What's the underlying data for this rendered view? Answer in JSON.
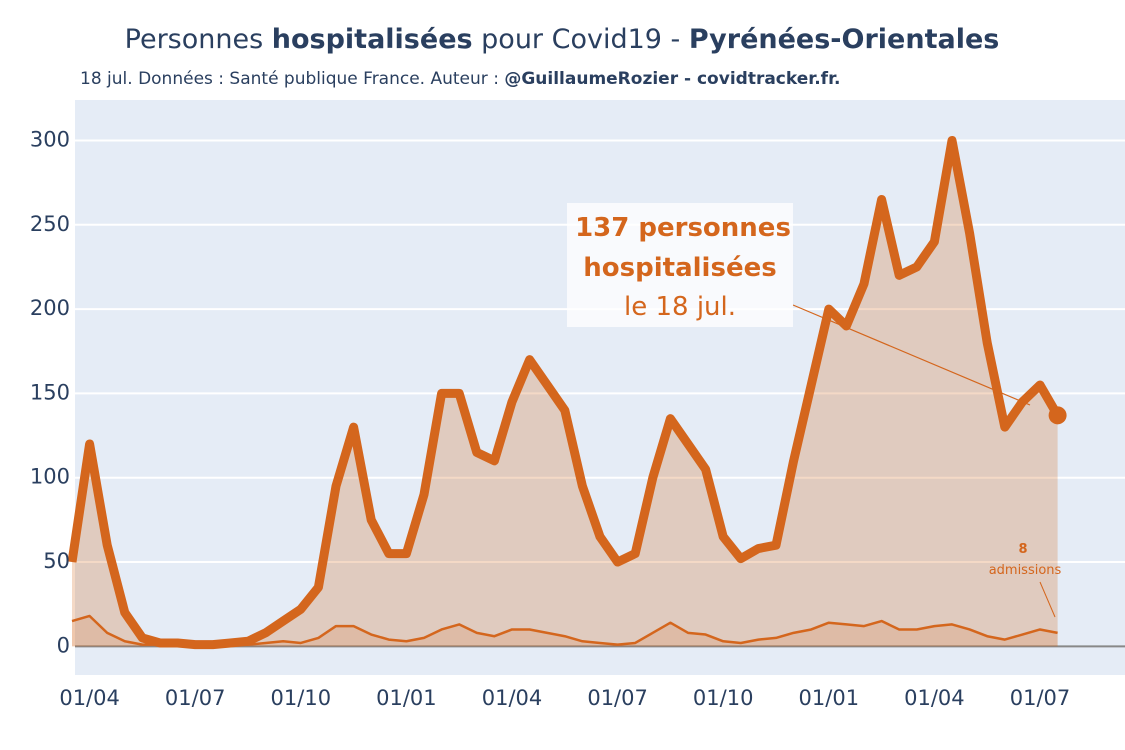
{
  "chart_data": {
    "type": "line",
    "title_parts": [
      {
        "text": "Personnes ",
        "bold": false
      },
      {
        "text": "hospitalisées",
        "bold": true
      },
      {
        "text": " pour Covid19 - ",
        "bold": false
      },
      {
        "text": "Pyrénées-Orientales",
        "bold": true
      }
    ],
    "subtitle_parts": [
      {
        "text": "18 jul. Données : Santé publique France. Auteur : ",
        "bold": false
      },
      {
        "text": "@GuillaumeRozier - covidtracker.fr.",
        "bold": true
      }
    ],
    "categories": [
      null,
      "01/04",
      null,
      null,
      null,
      null,
      null,
      "01/07",
      null,
      null,
      null,
      null,
      null,
      "01/10",
      null,
      null,
      null,
      null,
      null,
      "01/01",
      null,
      null,
      null,
      null,
      null,
      "01/04",
      null,
      null,
      null,
      null,
      null,
      "01/07",
      null,
      null,
      null,
      null,
      null,
      "01/10",
      null,
      null,
      null,
      null,
      null,
      "01/01",
      null,
      null,
      null,
      null,
      null,
      "01/04",
      null,
      null,
      null,
      null,
      null,
      "01/07",
      null
    ],
    "series": [
      {
        "name": "hospitalisées",
        "color": "#d4661d",
        "fill": true,
        "values": [
          50,
          120,
          60,
          20,
          5,
          2,
          2,
          1,
          1,
          2,
          3,
          8,
          15,
          22,
          35,
          95,
          130,
          75,
          55,
          55,
          90,
          150,
          150,
          115,
          110,
          145,
          170,
          155,
          140,
          95,
          65,
          50,
          55,
          100,
          135,
          120,
          105,
          65,
          52,
          58,
          60,
          110,
          155,
          200,
          190,
          215,
          265,
          220,
          225,
          240,
          300,
          245,
          180,
          130,
          145,
          155,
          137
        ]
      },
      {
        "name": "admissions",
        "color": "#d4661d",
        "fill": true,
        "values": [
          15,
          18,
          8,
          3,
          1,
          1,
          1,
          0,
          0,
          1,
          1,
          2,
          3,
          2,
          5,
          12,
          12,
          7,
          4,
          3,
          5,
          10,
          13,
          8,
          6,
          10,
          10,
          8,
          6,
          3,
          2,
          1,
          2,
          8,
          14,
          8,
          7,
          3,
          2,
          4,
          5,
          8,
          10,
          14,
          13,
          12,
          15,
          10,
          10,
          12,
          13,
          10,
          6,
          4,
          7,
          10,
          8
        ]
      }
    ],
    "annotations": [
      {
        "lines": [
          "137 personnes",
          "hospitalisées",
          "le 18 jul."
        ]
      },
      {
        "lines": [
          "8",
          "admissions"
        ]
      }
    ],
    "ylim": [
      -17,
      324
    ],
    "yticks": [
      0,
      50,
      100,
      150,
      200,
      250,
      300
    ],
    "grid": true
  }
}
